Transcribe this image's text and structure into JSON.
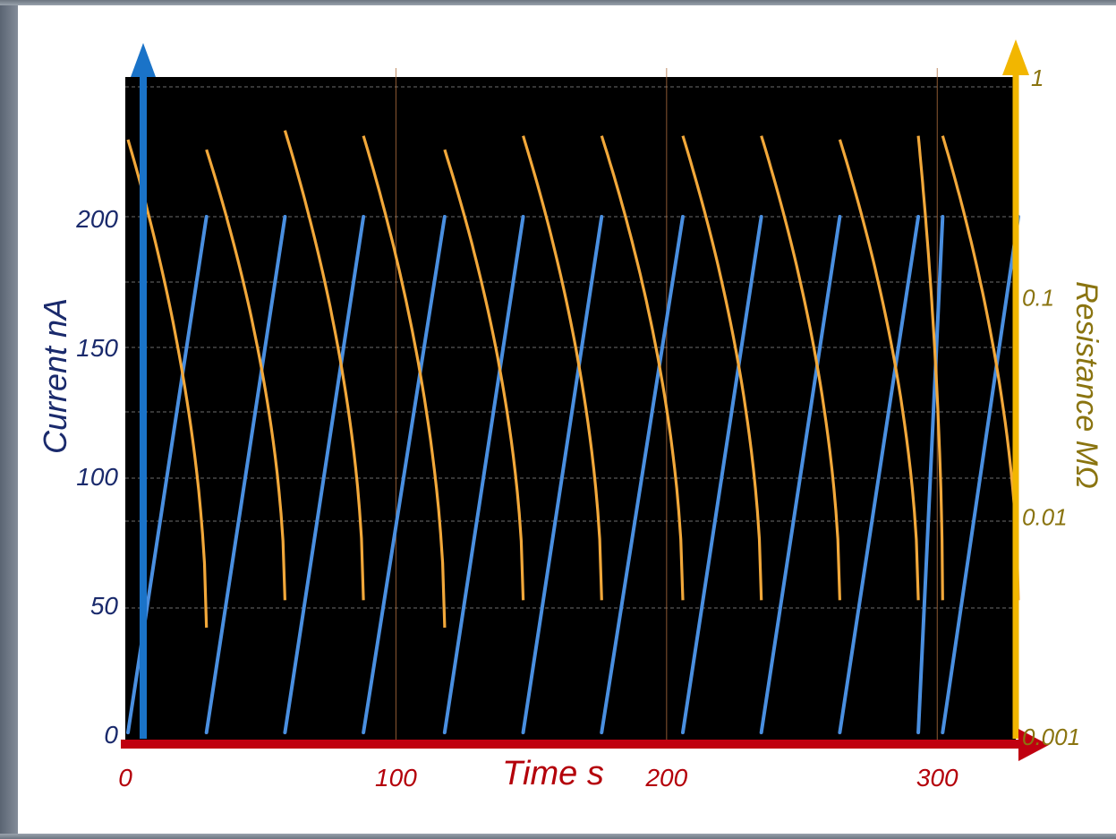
{
  "chart_data": {
    "type": "line",
    "title": "",
    "xlabel": "Time s",
    "ylabel_left": "Current nA",
    "ylabel_right": "Resistance MΩ",
    "xlim": [
      0,
      330
    ],
    "ylim_left": [
      0,
      250
    ],
    "ylim_right": [
      0.001,
      1
    ],
    "y_right_scale": "log",
    "x_ticks": [
      "0",
      "100",
      "200",
      "300"
    ],
    "y_left_ticks": [
      "0",
      "50",
      "100",
      "150",
      "200"
    ],
    "y_right_ticks": [
      "0.001",
      "0.01",
      "0.1",
      "1"
    ],
    "grid": true,
    "background": "#000000",
    "colors": {
      "current": "#4a8fe0",
      "resistance": "#f2a83a",
      "left_axis": "#1a73c8",
      "right_axis": "#f2b600",
      "x_axis": "#c00010"
    },
    "series": [
      {
        "name": "Current",
        "axis": "left",
        "shape": "ramp",
        "cycles": [
          {
            "x_start": 1,
            "x_end": 30,
            "y_start": 0,
            "y_end": 200
          },
          {
            "x_start": 30,
            "x_end": 59,
            "y_start": 0,
            "y_end": 200
          },
          {
            "x_start": 59,
            "x_end": 88,
            "y_start": 0,
            "y_end": 200
          },
          {
            "x_start": 88,
            "x_end": 118,
            "y_start": 0,
            "y_end": 200
          },
          {
            "x_start": 118,
            "x_end": 147,
            "y_start": 0,
            "y_end": 200
          },
          {
            "x_start": 147,
            "x_end": 176,
            "y_start": 0,
            "y_end": 200
          },
          {
            "x_start": 176,
            "x_end": 206,
            "y_start": 0,
            "y_end": 200
          },
          {
            "x_start": 206,
            "x_end": 235,
            "y_start": 0,
            "y_end": 200
          },
          {
            "x_start": 235,
            "x_end": 264,
            "y_start": 0,
            "y_end": 200
          },
          {
            "x_start": 264,
            "x_end": 293,
            "y_start": 0,
            "y_end": 200
          },
          {
            "x_start": 293,
            "x_end": 302,
            "y_start": 0,
            "y_end": 200
          },
          {
            "x_start": 302,
            "x_end": 330,
            "y_start": 0,
            "y_end": 200
          }
        ]
      },
      {
        "name": "Resistance",
        "axis": "right",
        "shape": "decay",
        "cycles": [
          {
            "x_start": 1,
            "x_end": 30,
            "r_start": 0.5,
            "r_end": 0.003
          },
          {
            "x_start": 30,
            "x_end": 59,
            "r_start": 0.45,
            "r_end": 0.004
          },
          {
            "x_start": 59,
            "x_end": 88,
            "r_start": 0.55,
            "r_end": 0.004
          },
          {
            "x_start": 88,
            "x_end": 118,
            "r_start": 0.52,
            "r_end": 0.003
          },
          {
            "x_start": 118,
            "x_end": 147,
            "r_start": 0.45,
            "r_end": 0.004
          },
          {
            "x_start": 147,
            "x_end": 176,
            "r_start": 0.52,
            "r_end": 0.004
          },
          {
            "x_start": 176,
            "x_end": 206,
            "r_start": 0.52,
            "r_end": 0.004
          },
          {
            "x_start": 206,
            "x_end": 235,
            "r_start": 0.52,
            "r_end": 0.004
          },
          {
            "x_start": 235,
            "x_end": 264,
            "r_start": 0.52,
            "r_end": 0.004
          },
          {
            "x_start": 264,
            "x_end": 293,
            "r_start": 0.5,
            "r_end": 0.004
          },
          {
            "x_start": 293,
            "x_end": 302,
            "r_start": 0.52,
            "r_end": 0.004
          },
          {
            "x_start": 302,
            "x_end": 330,
            "r_start": 0.52,
            "r_end": 0.004
          }
        ]
      }
    ]
  }
}
